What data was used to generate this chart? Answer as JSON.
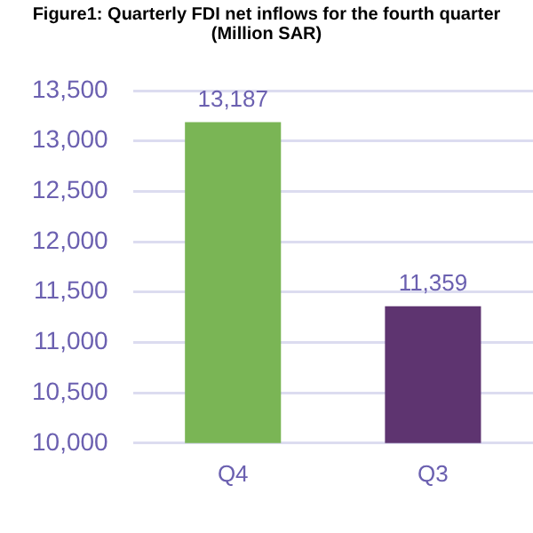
{
  "chart_data": {
    "type": "bar",
    "title": "Figure1: Quarterly FDI net inflows for the fourth quarter",
    "subtitle": "(Million SAR)",
    "categories": [
      "Q4",
      "Q3"
    ],
    "values": [
      13187,
      11359
    ],
    "colors": [
      "#7ab555",
      "#5e3470"
    ],
    "ylim": [
      10000,
      13500
    ],
    "yticks": [
      {
        "value": 10000,
        "label": "10,000"
      },
      {
        "value": 10500,
        "label": "10,500"
      },
      {
        "value": 11000,
        "label": "11,000"
      },
      {
        "value": 11500,
        "label": "11,500"
      },
      {
        "value": 12000,
        "label": "12,000"
      },
      {
        "value": 12500,
        "label": "12,500"
      },
      {
        "value": 13000,
        "label": "13,000"
      },
      {
        "value": 13500,
        "label": "13,500"
      }
    ],
    "value_labels": [
      "13,187",
      "11,359"
    ],
    "grid": "y",
    "legend": false
  }
}
